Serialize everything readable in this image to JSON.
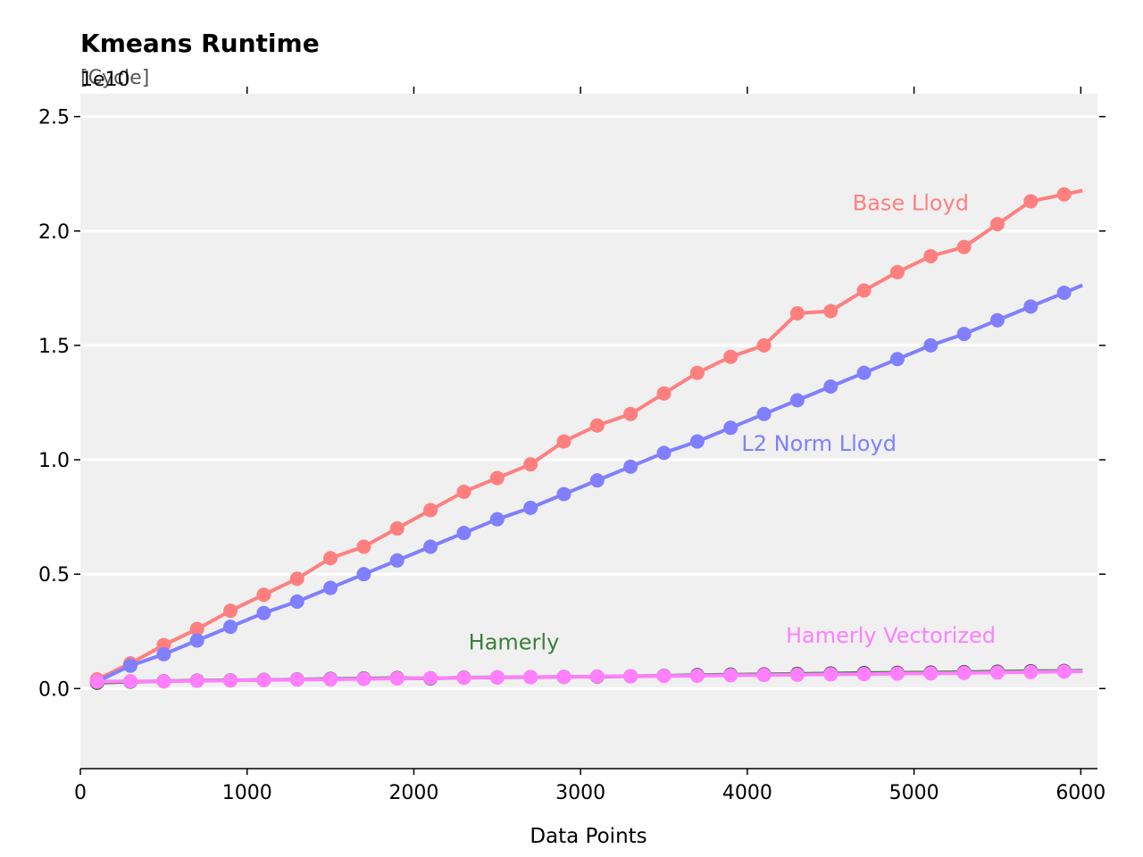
{
  "chart_data": {
    "type": "line",
    "title": "Kmeans Runtime",
    "unit_label": "[Cycle]",
    "y_offset_label": "1e10",
    "xlabel": "Data Points",
    "ylabel": "",
    "xlim": [
      0,
      6100
    ],
    "ylim": [
      -0.35,
      2.6
    ],
    "x_ticks": [
      0,
      1000,
      2000,
      3000,
      4000,
      5000,
      6000
    ],
    "y_ticks": [
      0.0,
      0.5,
      1.0,
      1.5,
      2.0,
      2.5
    ],
    "x_tick_labels": [
      "0",
      "1000",
      "2000",
      "3000",
      "4000",
      "5000",
      "6000"
    ],
    "y_tick_labels": [
      "0.0",
      "0.5",
      "1.0",
      "1.5",
      "2.0",
      "2.5"
    ],
    "grid": "horizontal",
    "background": "#f0f0f0",
    "x": [
      100,
      300,
      500,
      700,
      900,
      1100,
      1300,
      1500,
      1700,
      1900,
      2100,
      2300,
      2500,
      2700,
      2900,
      3100,
      3300,
      3500,
      3700,
      3900,
      4100,
      4300,
      4500,
      4700,
      4900,
      5100,
      5300,
      5500,
      5700,
      5900
    ],
    "series": [
      {
        "name": "Base Lloyd",
        "color": "#ff7f7f",
        "label_pos": [
          4980,
          2.09
        ],
        "values": [
          0.04,
          0.11,
          0.19,
          0.26,
          0.34,
          0.41,
          0.48,
          0.57,
          0.62,
          0.7,
          0.78,
          0.86,
          0.92,
          0.98,
          1.08,
          1.15,
          1.2,
          1.29,
          1.38,
          1.45,
          1.5,
          1.64,
          1.65,
          1.74,
          1.82,
          1.89,
          1.93,
          2.03,
          2.13,
          2.16
        ]
      },
      {
        "name": "L2 Norm Lloyd",
        "color": "#7f7fff",
        "label_pos": [
          4430,
          1.04
        ],
        "values": [
          0.03,
          0.1,
          0.15,
          0.21,
          0.27,
          0.33,
          0.38,
          0.44,
          0.5,
          0.56,
          0.62,
          0.68,
          0.74,
          0.79,
          0.85,
          0.91,
          0.97,
          1.03,
          1.08,
          1.14,
          1.2,
          1.26,
          1.32,
          1.38,
          1.44,
          1.5,
          1.55,
          1.61,
          1.67,
          1.73
        ]
      },
      {
        "name": "Hamerly",
        "color": "#3a7f3a",
        "marker_color": "#555555",
        "label_pos": [
          2600,
          0.17
        ],
        "values": [
          0.025,
          0.03,
          0.032,
          0.035,
          0.036,
          0.038,
          0.04,
          0.042,
          0.044,
          0.046,
          0.044,
          0.048,
          0.049,
          0.05,
          0.051,
          0.052,
          0.054,
          0.056,
          0.059,
          0.061,
          0.062,
          0.064,
          0.066,
          0.068,
          0.069,
          0.07,
          0.072,
          0.074,
          0.076,
          0.077
        ]
      },
      {
        "name": "Hamerly Vectorized",
        "color": "#ff7fff",
        "label_pos": [
          4860,
          0.2
        ],
        "values": [
          0.03,
          0.032,
          0.031,
          0.034,
          0.035,
          0.037,
          0.039,
          0.04,
          0.042,
          0.044,
          0.046,
          0.047,
          0.049,
          0.05,
          0.051,
          0.053,
          0.054,
          0.055,
          0.056,
          0.058,
          0.059,
          0.06,
          0.062,
          0.063,
          0.065,
          0.066,
          0.068,
          0.07,
          0.072,
          0.074
        ]
      }
    ]
  }
}
